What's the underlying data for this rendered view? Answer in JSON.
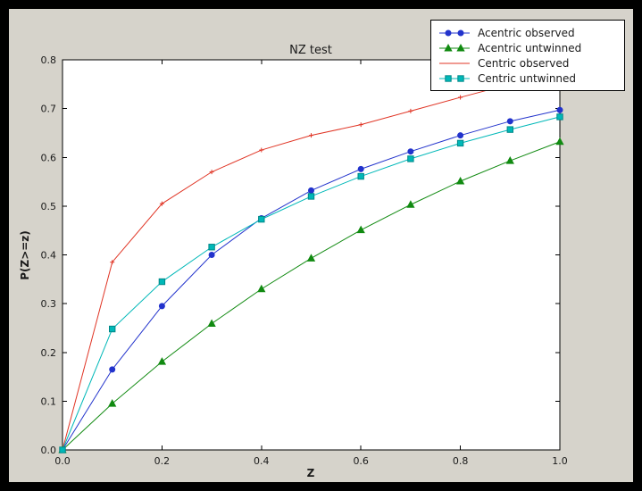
{
  "chart_data": {
    "type": "line",
    "title": "NZ test",
    "xlabel": "Z",
    "ylabel": "P(Z>=z)",
    "xlim": [
      0.0,
      1.0
    ],
    "ylim": [
      0.0,
      0.8
    ],
    "x_ticks": [
      "0.0",
      "0.2",
      "0.4",
      "0.6",
      "0.8",
      "1.0"
    ],
    "y_ticks": [
      "0.0",
      "0.1",
      "0.2",
      "0.3",
      "0.4",
      "0.5",
      "0.6",
      "0.7",
      "0.8"
    ],
    "grid": false,
    "legend_position": "upper right, overlapping top-right corner of axes",
    "x": [
      0.0,
      0.1,
      0.2,
      0.3,
      0.4,
      0.5,
      0.6,
      0.7,
      0.8,
      0.9,
      1.0
    ],
    "series": [
      {
        "name": "Acentric observed",
        "color": "#2233cc",
        "marker": "circle",
        "values": [
          0.0,
          0.165,
          0.295,
          0.4,
          0.475,
          0.532,
          0.576,
          0.612,
          0.645,
          0.674,
          0.697
        ]
      },
      {
        "name": "Acentric untwinned",
        "color": "#118a11",
        "marker": "triangle",
        "values": [
          0.0,
          0.095,
          0.181,
          0.259,
          0.33,
          0.393,
          0.451,
          0.503,
          0.551,
          0.593,
          0.632
        ]
      },
      {
        "name": "Centric observed",
        "color": "#e03424",
        "marker": "plus",
        "values": [
          0.0,
          0.385,
          0.505,
          0.57,
          0.615,
          0.645,
          0.667,
          0.695,
          0.723,
          0.75,
          0.775
        ]
      },
      {
        "name": "Centric untwinned",
        "color": "#00b8b8",
        "marker": "square",
        "marker_edge_color": "#008888",
        "values": [
          0.0,
          0.248,
          0.345,
          0.416,
          0.473,
          0.52,
          0.561,
          0.597,
          0.629,
          0.657,
          0.683
        ]
      }
    ]
  }
}
